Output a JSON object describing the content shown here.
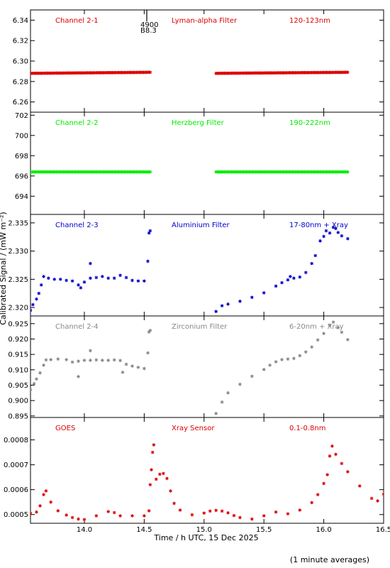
{
  "figure": {
    "xlabel": "Time / h UTC, 15 Dec 2025",
    "ylabel": "Calibrated Signal / (mW m⁻²)",
    "footnote": "(1 minute averages)",
    "marker_annotation": [
      "4900",
      "B8.3"
    ]
  },
  "chart_data": [
    {
      "type": "scatter",
      "title": "",
      "labels": [
        "Channel 2-1",
        "Lyman-alpha Filter",
        "120-123nm"
      ],
      "color": "#dd0000",
      "ylim": [
        6.25,
        6.35
      ],
      "yticks": [
        6.26,
        6.28,
        6.3,
        6.32,
        6.34
      ],
      "ytick_labels": [
        "6.26",
        "6.28",
        "6.30",
        "6.32",
        "6.34"
      ],
      "xlim": [
        13.55,
        16.5
      ],
      "segments": [
        {
          "x": [
            13.55,
            14.55
          ],
          "y": [
            6.288,
            6.289
          ]
        },
        {
          "x": [
            15.1,
            16.2
          ],
          "y": [
            6.288,
            6.289
          ]
        }
      ]
    },
    {
      "type": "scatter",
      "title": "",
      "labels": [
        "Channel 2-2",
        "Herzberg Filter",
        "190-222nm"
      ],
      "color": "#00ee00",
      "ylim": [
        692.2,
        702.3
      ],
      "yticks": [
        694,
        696,
        698,
        700,
        702
      ],
      "ytick_labels": [
        "694",
        "696",
        "698",
        "700",
        "702"
      ],
      "xlim": [
        13.55,
        16.5
      ],
      "segments": [
        {
          "x": [
            13.55,
            14.55
          ],
          "y": [
            696.4,
            696.4
          ]
        },
        {
          "x": [
            15.1,
            16.2
          ],
          "y": [
            696.4,
            696.4
          ]
        }
      ]
    },
    {
      "type": "scatter",
      "title": "",
      "labels": [
        "Channel 2-3",
        "Aluminium Filter",
        "17-80nm + Xray"
      ],
      "color": "#0000cc",
      "ylim": [
        2.3185,
        2.3365
      ],
      "yticks": [
        2.32,
        2.325,
        2.33,
        2.335
      ],
      "ytick_labels": [
        "2.320",
        "2.325",
        "2.330",
        "2.335"
      ],
      "xlim": [
        13.55,
        16.5
      ],
      "points": [
        [
          13.55,
          2.3195
        ],
        [
          13.57,
          2.3205
        ],
        [
          13.6,
          2.3215
        ],
        [
          13.62,
          2.3225
        ],
        [
          13.64,
          2.324
        ],
        [
          13.66,
          2.3255
        ],
        [
          13.7,
          2.3252
        ],
        [
          13.75,
          2.325
        ],
        [
          13.8,
          2.325
        ],
        [
          13.85,
          2.3248
        ],
        [
          13.9,
          2.3247
        ],
        [
          13.95,
          2.324
        ],
        [
          14.0,
          2.3245
        ],
        [
          14.05,
          2.3252
        ],
        [
          14.1,
          2.3253
        ],
        [
          14.15,
          2.3255
        ],
        [
          14.2,
          2.3252
        ],
        [
          14.25,
          2.3252
        ],
        [
          14.3,
          2.3257
        ],
        [
          14.35,
          2.3253
        ],
        [
          14.4,
          2.3248
        ],
        [
          14.45,
          2.3247
        ],
        [
          14.5,
          2.3247
        ],
        [
          13.97,
          2.3235
        ],
        [
          14.05,
          2.3278
        ],
        [
          14.53,
          2.3282
        ],
        [
          14.54,
          2.3332
        ],
        [
          14.55,
          2.3336
        ],
        [
          15.1,
          2.3193
        ],
        [
          15.15,
          2.3203
        ],
        [
          15.2,
          2.3206
        ],
        [
          15.3,
          2.3211
        ],
        [
          15.4,
          2.3218
        ],
        [
          15.5,
          2.3226
        ],
        [
          15.6,
          2.3238
        ],
        [
          15.65,
          2.3244
        ],
        [
          15.7,
          2.3249
        ],
        [
          15.72,
          2.3255
        ],
        [
          15.75,
          2.3252
        ],
        [
          15.8,
          2.3254
        ],
        [
          15.85,
          2.3262
        ],
        [
          15.9,
          2.3278
        ],
        [
          15.93,
          2.3292
        ],
        [
          15.97,
          2.3318
        ],
        [
          16.0,
          2.3326
        ],
        [
          16.02,
          2.3336
        ],
        [
          16.05,
          2.3332
        ],
        [
          16.08,
          2.3342
        ],
        [
          16.1,
          2.334
        ],
        [
          16.12,
          2.3333
        ],
        [
          16.15,
          2.3327
        ],
        [
          16.2,
          2.3322
        ]
      ]
    },
    {
      "type": "scatter",
      "title": "",
      "labels": [
        "Channel 2-4",
        "Zirconium Filter",
        "6-20nm + Xray"
      ],
      "color": "#888888",
      "ylim": [
        0.8945,
        0.9275
      ],
      "yticks": [
        0.895,
        0.9,
        0.905,
        0.91,
        0.915,
        0.92,
        0.925
      ],
      "ytick_labels": [
        "0.895",
        "0.900",
        "0.905",
        "0.910",
        "0.915",
        "0.920",
        "0.925"
      ],
      "xlim": [
        13.55,
        16.5
      ],
      "points": [
        [
          13.55,
          0.9035
        ],
        [
          13.58,
          0.9055
        ],
        [
          13.6,
          0.907
        ],
        [
          13.63,
          0.909
        ],
        [
          13.66,
          0.9115
        ],
        [
          13.68,
          0.9132
        ],
        [
          13.72,
          0.9133
        ],
        [
          13.78,
          0.9135
        ],
        [
          13.85,
          0.9133
        ],
        [
          13.9,
          0.9125
        ],
        [
          13.95,
          0.9128
        ],
        [
          14.0,
          0.9131
        ],
        [
          14.05,
          0.9131
        ],
        [
          14.1,
          0.9132
        ],
        [
          14.15,
          0.9131
        ],
        [
          14.2,
          0.9131
        ],
        [
          14.25,
          0.9132
        ],
        [
          14.3,
          0.913
        ],
        [
          14.35,
          0.9118
        ],
        [
          14.4,
          0.9112
        ],
        [
          14.45,
          0.9108
        ],
        [
          14.5,
          0.9104
        ],
        [
          13.95,
          0.9078
        ],
        [
          14.05,
          0.9162
        ],
        [
          14.32,
          0.9092
        ],
        [
          14.53,
          0.9155
        ],
        [
          14.54,
          0.9223
        ],
        [
          14.55,
          0.9228
        ],
        [
          15.1,
          0.8958
        ],
        [
          15.15,
          0.8995
        ],
        [
          15.2,
          0.9025
        ],
        [
          15.3,
          0.9053
        ],
        [
          15.4,
          0.9079
        ],
        [
          15.5,
          0.9101
        ],
        [
          15.55,
          0.9115
        ],
        [
          15.6,
          0.9126
        ],
        [
          15.65,
          0.9133
        ],
        [
          15.7,
          0.9135
        ],
        [
          15.75,
          0.9137
        ],
        [
          15.8,
          0.9146
        ],
        [
          15.85,
          0.9158
        ],
        [
          15.9,
          0.9174
        ],
        [
          15.95,
          0.9197
        ],
        [
          16.0,
          0.9218
        ],
        [
          16.05,
          0.9245
        ],
        [
          16.08,
          0.9255
        ],
        [
          16.12,
          0.9237
        ],
        [
          16.15,
          0.9222
        ],
        [
          16.2,
          0.9198
        ]
      ]
    },
    {
      "type": "scatter",
      "title": "",
      "labels": [
        "GOES",
        "Xray Sensor",
        "0.1-0.8nm"
      ],
      "color": "#dd0000",
      "ylim": [
        0.000465,
        0.00089
      ],
      "yticks": [
        0.0005,
        0.0006,
        0.0007,
        0.0008
      ],
      "ytick_labels": [
        "0.0005",
        "0.0006",
        "0.0007",
        "0.0008"
      ],
      "xlim": [
        13.55,
        16.5
      ],
      "points": [
        [
          13.55,
          0.000505
        ],
        [
          13.6,
          0.00051
        ],
        [
          13.63,
          0.000535
        ],
        [
          13.66,
          0.00058
        ],
        [
          13.68,
          0.000595
        ],
        [
          13.72,
          0.00055
        ],
        [
          13.78,
          0.000515
        ],
        [
          13.85,
          0.000498
        ],
        [
          13.9,
          0.000488
        ],
        [
          13.95,
          0.000482
        ],
        [
          14.0,
          0.00048
        ],
        [
          14.1,
          0.000495
        ],
        [
          14.2,
          0.000512
        ],
        [
          14.25,
          0.000508
        ],
        [
          14.3,
          0.000495
        ],
        [
          14.4,
          0.000495
        ],
        [
          14.5,
          0.000495
        ],
        [
          14.54,
          0.000515
        ],
        [
          14.55,
          0.00062
        ],
        [
          14.56,
          0.00068
        ],
        [
          14.57,
          0.00075
        ],
        [
          14.58,
          0.00078
        ],
        [
          14.6,
          0.000642
        ],
        [
          14.63,
          0.000662
        ],
        [
          14.66,
          0.000665
        ],
        [
          14.69,
          0.000645
        ],
        [
          14.72,
          0.000595
        ],
        [
          14.75,
          0.000545
        ],
        [
          14.8,
          0.000518
        ],
        [
          14.9,
          0.000499
        ],
        [
          15.0,
          0.000506
        ],
        [
          15.05,
          0.000514
        ],
        [
          15.1,
          0.000517
        ],
        [
          15.15,
          0.000514
        ],
        [
          15.2,
          0.000507
        ],
        [
          15.25,
          0.000496
        ],
        [
          15.3,
          0.000488
        ],
        [
          15.4,
          0.000482
        ],
        [
          15.5,
          0.000495
        ],
        [
          15.6,
          0.00051
        ],
        [
          15.7,
          0.000503
        ],
        [
          15.8,
          0.000518
        ],
        [
          15.9,
          0.000548
        ],
        [
          15.95,
          0.00058
        ],
        [
          16.0,
          0.000625
        ],
        [
          16.03,
          0.00066
        ],
        [
          16.05,
          0.000735
        ],
        [
          16.07,
          0.000775
        ],
        [
          16.1,
          0.000742
        ],
        [
          16.15,
          0.000705
        ],
        [
          16.2,
          0.000672
        ],
        [
          16.3,
          0.000615
        ],
        [
          16.4,
          0.000565
        ],
        [
          16.45,
          0.000555
        ],
        [
          16.5,
          0.000582
        ]
      ]
    }
  ]
}
